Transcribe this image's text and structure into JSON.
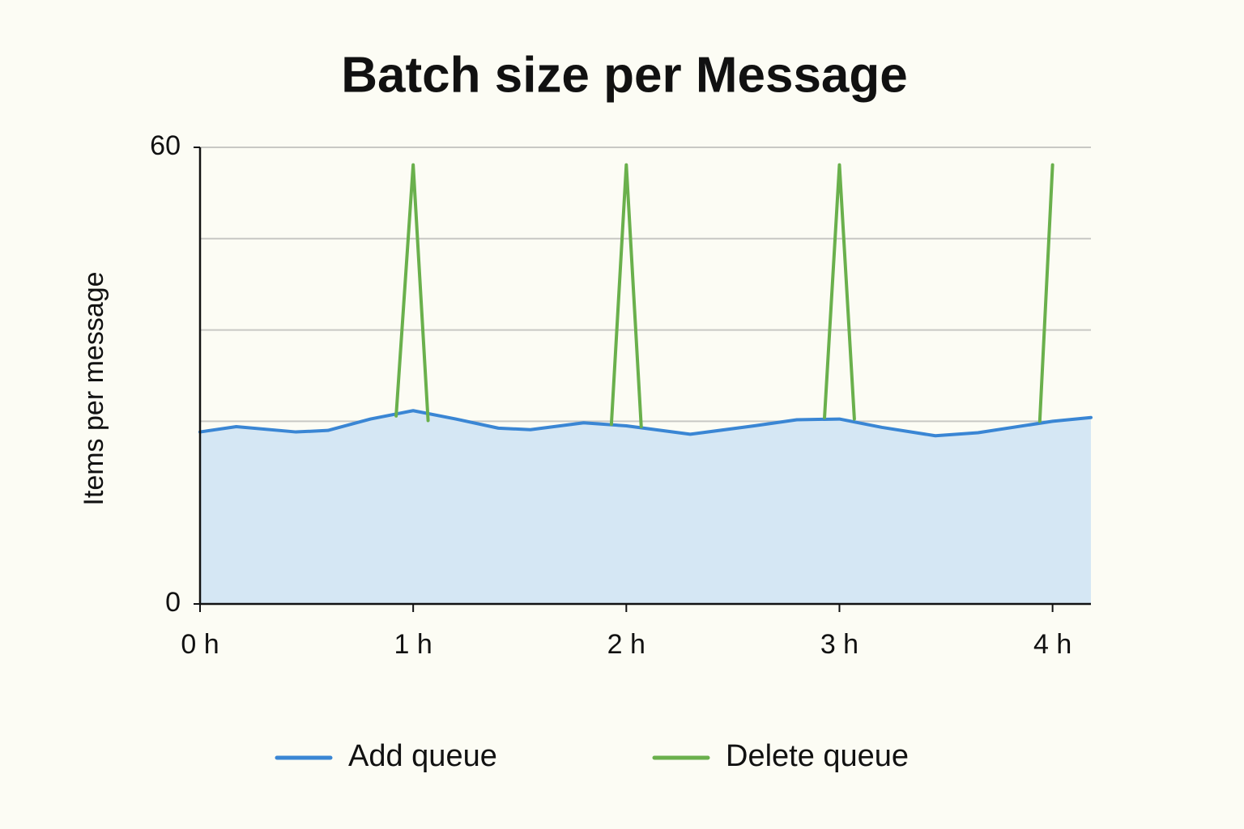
{
  "chart_data": {
    "type": "area-line",
    "title": "Batch size per Message",
    "y_label": "Items per message",
    "xlim": [
      0,
      4.18
    ],
    "ylim": [
      0,
      60
    ],
    "xticks": [
      {
        "value": 0,
        "label": "0 h"
      },
      {
        "value": 1,
        "label": "1 h"
      },
      {
        "value": 2,
        "label": "2 h"
      },
      {
        "value": 3,
        "label": "3 h"
      },
      {
        "value": 4,
        "label": "4 h"
      }
    ],
    "yticks": [
      0,
      60
    ],
    "ygrid": [
      24,
      36,
      48,
      60
    ],
    "grid": true,
    "legend": "bottom",
    "series": [
      {
        "name": "Add queue",
        "color": "#3a86d4",
        "fill": "#d5e7f4",
        "x": [
          0,
          0.17,
          0.45,
          0.6,
          0.8,
          1,
          1.2,
          1.4,
          1.55,
          1.8,
          2,
          2.3,
          2.6,
          2.8,
          3,
          3.2,
          3.45,
          3.65,
          4,
          4.18
        ],
        "values": [
          22.6,
          23.3,
          22.6,
          22.8,
          24.3,
          25.4,
          24.3,
          23.1,
          22.9,
          23.8,
          23.4,
          22.3,
          23.4,
          24.2,
          24.3,
          23.2,
          22.1,
          22.5,
          24.0,
          24.5
        ]
      },
      {
        "name": "Delete queue",
        "color": "#6ab04c",
        "x": [
          0.92,
          1,
          1.07,
          null,
          1.93,
          2,
          2.07,
          null,
          2.93,
          3,
          3.07,
          null,
          3.94,
          4
        ],
        "values": [
          24.7,
          57.7,
          24.1,
          null,
          23.6,
          57.7,
          23.3,
          null,
          24.5,
          57.7,
          24.3,
          null,
          24.0,
          57.7
        ]
      }
    ]
  }
}
